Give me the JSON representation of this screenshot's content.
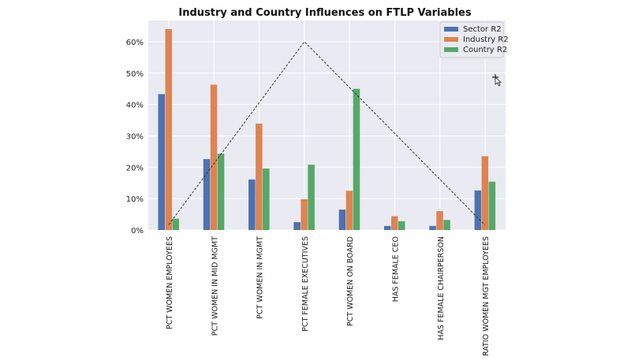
{
  "chart_data": {
    "type": "bar",
    "title": "Industry and Country Influences on FTLP Variables",
    "categories": [
      "PCT WOMEN EMPLOYEES",
      "PCT WOMEN IN MID MGMT",
      "PCT WOMEN IN MGMT",
      "PCT FEMALE EXECUTIVES",
      "PCT WOMEN ON BOARD",
      "HAS FEMALE CEO",
      "HAS FEMALE CHAIRPERSON",
      "RATIO WOMEN MGT EMPLOYEES"
    ],
    "series": [
      {
        "name": "Sector R2",
        "color": "#4c72b0",
        "values": [
          43.3,
          22.6,
          16.1,
          2.5,
          6.5,
          1.3,
          1.3,
          12.6
        ]
      },
      {
        "name": "Industry R2",
        "color": "#dd8452",
        "values": [
          64.0,
          46.3,
          33.9,
          9.8,
          12.5,
          4.4,
          6.0,
          23.5
        ]
      },
      {
        "name": "Country R2",
        "color": "#55a868",
        "values": [
          3.6,
          24.3,
          19.6,
          20.8,
          45.0,
          2.8,
          3.2,
          15.4
        ]
      }
    ],
    "yticks": [
      "0%",
      "10%",
      "20%",
      "30%",
      "40%",
      "50%",
      "60%"
    ],
    "ylim": [
      0,
      67
    ],
    "grid": true,
    "legend": "top-right",
    "annotation_line": {
      "style": "dashed",
      "points": [
        [
          0,
          1.7
        ],
        [
          3,
          60
        ],
        [
          7,
          1.5
        ]
      ]
    }
  }
}
